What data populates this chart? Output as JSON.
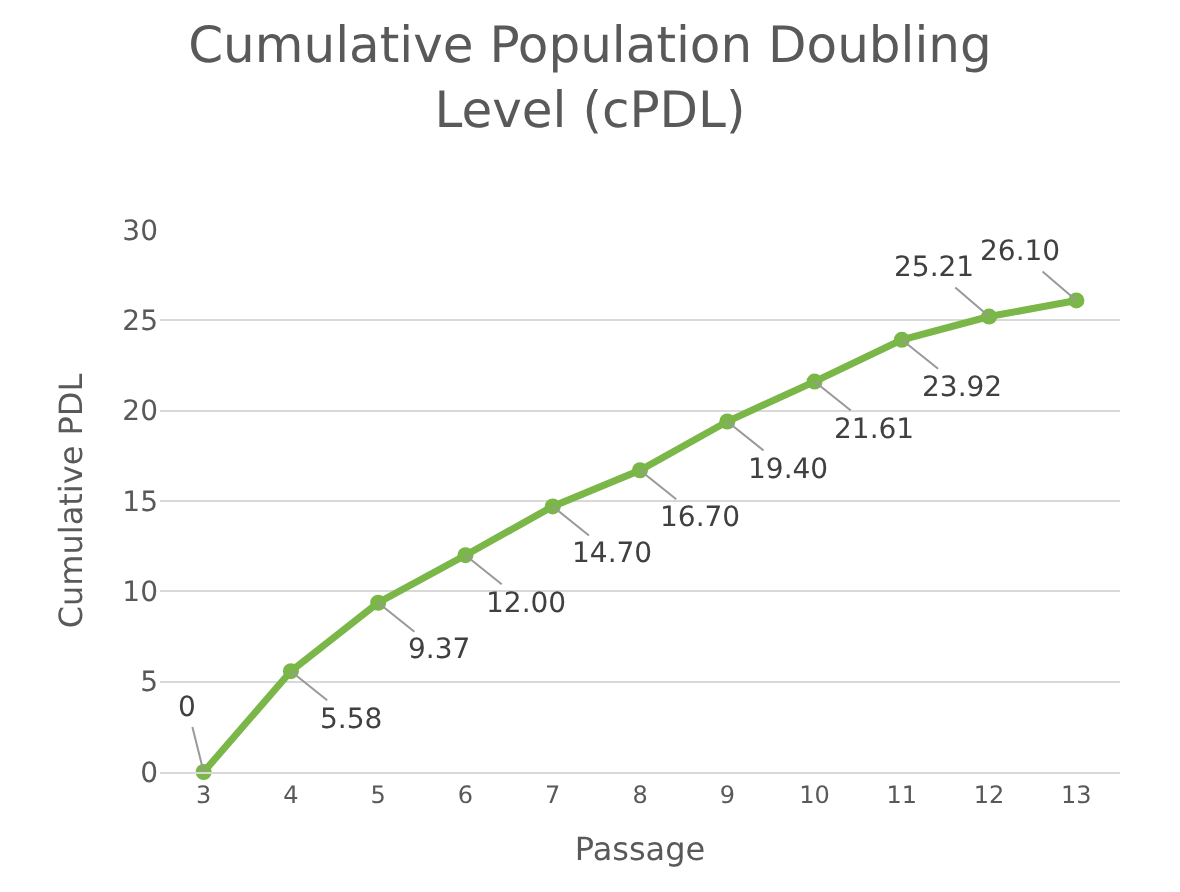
{
  "chart_data": {
    "type": "line",
    "title": "Cumulative Population Doubling\nLevel (cPDL)",
    "xlabel": "Passage",
    "ylabel": "Cumulative PDL",
    "x": [
      3,
      4,
      5,
      6,
      7,
      8,
      9,
      10,
      11,
      12,
      13
    ],
    "series": [
      {
        "color": "#7ab648",
        "values": [
          0,
          5.58,
          9.37,
          12.0,
          14.7,
          16.7,
          19.4,
          21.61,
          23.92,
          25.21,
          26.1
        ],
        "value_labels": [
          "0",
          "5.58",
          "9.37",
          "12.00",
          "14.70",
          "16.70",
          "19.40",
          "21.61",
          "23.92",
          "25.21",
          "26.10"
        ]
      }
    ],
    "xlim": [
      2.5,
      13.5
    ],
    "xticks": [
      3,
      4,
      5,
      6,
      7,
      8,
      9,
      10,
      11,
      12,
      13
    ],
    "ylim": [
      0,
      30
    ],
    "yticks": [
      0,
      5,
      10,
      15,
      20,
      25,
      30
    ],
    "grid": "y",
    "marker": "circle",
    "line_style": "solid"
  }
}
